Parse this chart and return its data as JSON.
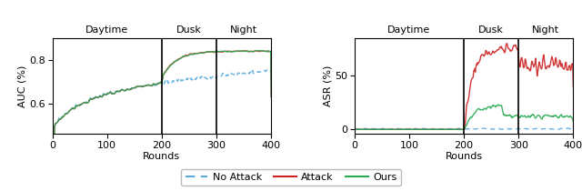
{
  "phase_labels": [
    "Daytime",
    "Dusk",
    "Night"
  ],
  "phase_boundaries": [
    200,
    300
  ],
  "x_max": 400,
  "auc_ylim": [
    0.46,
    0.9
  ],
  "auc_yticks": [
    0.6,
    0.8
  ],
  "asr_ylim": [
    -4,
    85
  ],
  "asr_yticks": [
    0,
    50
  ],
  "xlabel": "Rounds",
  "left_ylabel": "AUC (%)",
  "right_ylabel": "ASR (%)",
  "legend_labels": [
    "No Attack",
    "Attack",
    "Ours"
  ],
  "colors": {
    "no_attack": "#5aabdc",
    "attack": "#cc2222",
    "ours": "#2aaa55"
  },
  "seed": 17
}
